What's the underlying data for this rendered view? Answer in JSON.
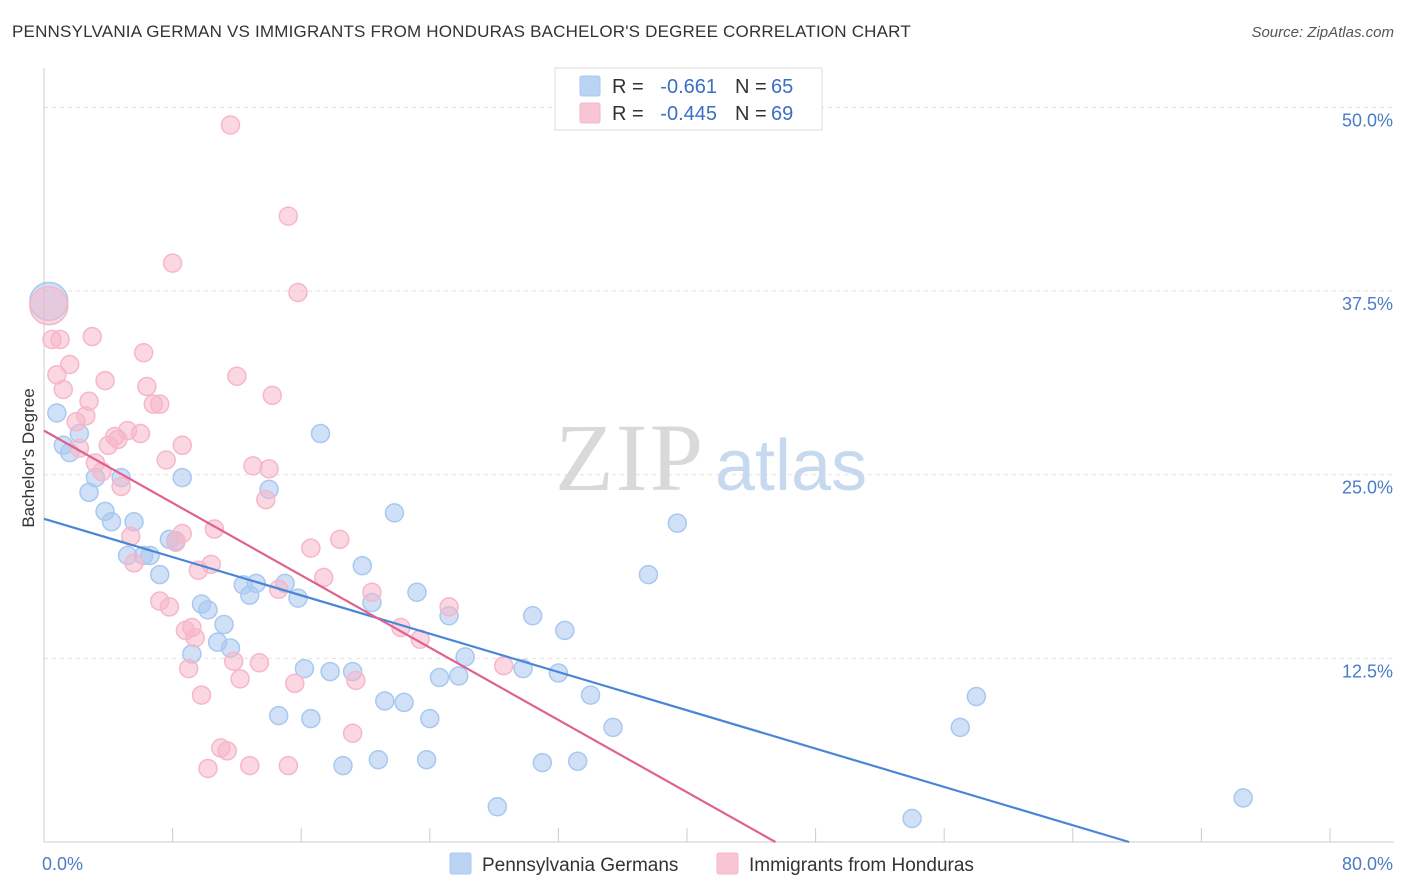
{
  "title": "PENNSYLVANIA GERMAN VS IMMIGRANTS FROM HONDURAS BACHELOR'S DEGREE CORRELATION CHART",
  "source": "Source: ZipAtlas.com",
  "watermark": {
    "zip": "ZIP",
    "atlas": "atlas"
  },
  "legend_top": {
    "r_label": "R =",
    "n_label": "N =",
    "rows": [
      {
        "r": "-0.661",
        "n": "65",
        "color": "#a9c8f0"
      },
      {
        "r": "-0.445",
        "n": "69",
        "color": "#f6b7c9"
      }
    ]
  },
  "chart_data": {
    "type": "scatter",
    "title": "PENNSYLVANIA GERMAN VS IMMIGRANTS FROM HONDURAS BACHELOR'S DEGREE CORRELATION CHART",
    "xlabel": "",
    "ylabel": "Bachelor's Degree",
    "xlim": [
      0,
      80
    ],
    "ylim": [
      0,
      52
    ],
    "x_tick_labels": [
      "0.0%",
      "80.0%"
    ],
    "y_ticks": [
      12.5,
      25.0,
      37.5,
      50.0
    ],
    "y_tick_labels": [
      "12.5%",
      "25.0%",
      "37.5%",
      "50.0%"
    ],
    "grid": true,
    "legend_position": "bottom",
    "series": [
      {
        "name": "Pennsylvania Germans",
        "color": "#4a86d8",
        "fill": "#a9c8f0",
        "trend": {
          "x": [
            0,
            67.5
          ],
          "y": [
            22.0,
            0
          ]
        },
        "points": [
          [
            0.3,
            36.8,
            "big"
          ],
          [
            0.8,
            29.2
          ],
          [
            1.2,
            27.0
          ],
          [
            1.6,
            26.5
          ],
          [
            2.2,
            27.8
          ],
          [
            2.8,
            23.8
          ],
          [
            3.2,
            24.8
          ],
          [
            3.8,
            22.5
          ],
          [
            4.2,
            21.8
          ],
          [
            4.8,
            24.8
          ],
          [
            5.2,
            19.5
          ],
          [
            5.6,
            21.8
          ],
          [
            6.2,
            19.5
          ],
          [
            6.6,
            19.5
          ],
          [
            7.2,
            18.2
          ],
          [
            7.8,
            20.6
          ],
          [
            8.2,
            20.5
          ],
          [
            8.6,
            24.8
          ],
          [
            9.2,
            12.8
          ],
          [
            9.8,
            16.2
          ],
          [
            10.2,
            15.8
          ],
          [
            10.8,
            13.6
          ],
          [
            11.2,
            14.8
          ],
          [
            11.6,
            13.2
          ],
          [
            12.4,
            17.5
          ],
          [
            12.8,
            16.8
          ],
          [
            13.2,
            17.6
          ],
          [
            14.0,
            24.0
          ],
          [
            14.6,
            8.6
          ],
          [
            15.0,
            17.6
          ],
          [
            15.8,
            16.6
          ],
          [
            16.2,
            11.8
          ],
          [
            16.6,
            8.4
          ],
          [
            17.2,
            27.8
          ],
          [
            17.8,
            11.6
          ],
          [
            18.6,
            5.2
          ],
          [
            19.2,
            11.6
          ],
          [
            19.8,
            18.8
          ],
          [
            20.4,
            16.3
          ],
          [
            20.8,
            5.6
          ],
          [
            21.2,
            9.6
          ],
          [
            21.8,
            22.4
          ],
          [
            22.4,
            9.5
          ],
          [
            23.2,
            17.0
          ],
          [
            23.8,
            5.6
          ],
          [
            24.0,
            8.4
          ],
          [
            24.6,
            11.2
          ],
          [
            25.2,
            15.4
          ],
          [
            25.8,
            11.3
          ],
          [
            26.2,
            12.6
          ],
          [
            28.2,
            2.4
          ],
          [
            29.8,
            11.8
          ],
          [
            30.4,
            15.4
          ],
          [
            31.0,
            5.4
          ],
          [
            32.0,
            11.5
          ],
          [
            32.4,
            14.4
          ],
          [
            33.2,
            5.5
          ],
          [
            34.0,
            10.0
          ],
          [
            35.4,
            7.8
          ],
          [
            37.6,
            18.2
          ],
          [
            39.4,
            21.7
          ],
          [
            54.0,
            1.6
          ],
          [
            57.0,
            7.8
          ],
          [
            58.0,
            9.9
          ],
          [
            74.6,
            3.0
          ]
        ]
      },
      {
        "name": "Immigrants from Honduras",
        "color": "#e0608e",
        "fill": "#f6b7c9",
        "trend": {
          "x": [
            0,
            45.5
          ],
          "y": [
            28.0,
            0
          ]
        },
        "points": [
          [
            0.3,
            36.5,
            "big"
          ],
          [
            0.5,
            34.2
          ],
          [
            0.8,
            31.8
          ],
          [
            1.0,
            34.2
          ],
          [
            1.2,
            30.8
          ],
          [
            1.6,
            32.5
          ],
          [
            2.0,
            28.6
          ],
          [
            2.2,
            26.8
          ],
          [
            2.6,
            29.0
          ],
          [
            2.8,
            30.0
          ],
          [
            3.0,
            34.4
          ],
          [
            3.2,
            25.8
          ],
          [
            3.6,
            25.2
          ],
          [
            3.8,
            31.4
          ],
          [
            4.0,
            27.0
          ],
          [
            4.4,
            27.6
          ],
          [
            4.6,
            27.4
          ],
          [
            4.8,
            24.2
          ],
          [
            5.2,
            28.0
          ],
          [
            5.4,
            20.8
          ],
          [
            5.6,
            19.0
          ],
          [
            6.0,
            27.8
          ],
          [
            6.2,
            33.3
          ],
          [
            6.4,
            31.0
          ],
          [
            6.8,
            29.8
          ],
          [
            7.2,
            29.8
          ],
          [
            7.6,
            26.0
          ],
          [
            7.2,
            16.4
          ],
          [
            7.8,
            16.0
          ],
          [
            8.2,
            20.4
          ],
          [
            8.6,
            21.0
          ],
          [
            8.8,
            14.4
          ],
          [
            9.0,
            11.8
          ],
          [
            9.2,
            14.6
          ],
          [
            9.6,
            18.5
          ],
          [
            8.0,
            39.4
          ],
          [
            8.6,
            27.0
          ],
          [
            9.4,
            13.9
          ],
          [
            9.8,
            10.0
          ],
          [
            10.4,
            18.9
          ],
          [
            10.6,
            21.3
          ],
          [
            10.2,
            5.0
          ],
          [
            11.0,
            6.4
          ],
          [
            11.4,
            6.2
          ],
          [
            11.8,
            12.3
          ],
          [
            12.0,
            31.7
          ],
          [
            12.2,
            11.1
          ],
          [
            12.8,
            5.2
          ],
          [
            13.0,
            25.6
          ],
          [
            13.4,
            12.2
          ],
          [
            13.8,
            23.3
          ],
          [
            14.0,
            25.4
          ],
          [
            14.2,
            30.4
          ],
          [
            14.6,
            17.2
          ],
          [
            15.2,
            5.2
          ],
          [
            15.2,
            42.6
          ],
          [
            15.6,
            10.8
          ],
          [
            15.8,
            37.4
          ],
          [
            16.6,
            20.0
          ],
          [
            17.4,
            18.0
          ],
          [
            18.4,
            20.6
          ],
          [
            19.2,
            7.4
          ],
          [
            19.4,
            11.0
          ],
          [
            22.2,
            14.6
          ],
          [
            23.4,
            13.8
          ],
          [
            25.2,
            16.0
          ],
          [
            28.6,
            12.0
          ],
          [
            11.6,
            48.8
          ],
          [
            20.4,
            17.0
          ]
        ]
      }
    ]
  },
  "bottom_legend": [
    {
      "label": "Pennsylvania Germans",
      "color": "#a9c8f0"
    },
    {
      "label": "Immigrants from Honduras",
      "color": "#f6b7c9"
    }
  ]
}
